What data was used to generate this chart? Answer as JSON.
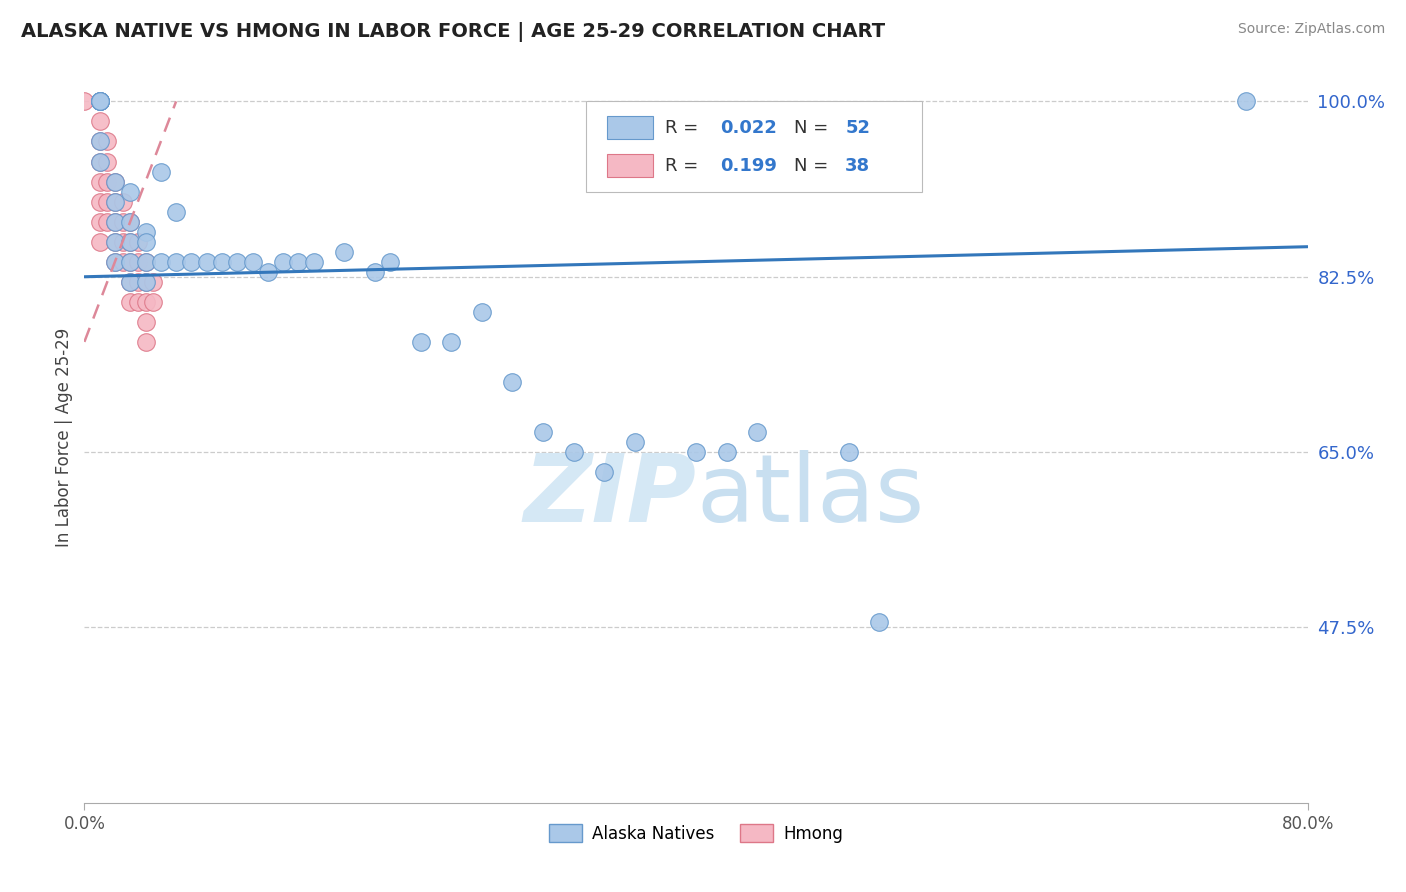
{
  "title": "ALASKA NATIVE VS HMONG IN LABOR FORCE | AGE 25-29 CORRELATION CHART",
  "source": "Source: ZipAtlas.com",
  "ylabel": "In Labor Force | Age 25-29",
  "xlim": [
    0.0,
    0.8
  ],
  "ylim": [
    0.3,
    1.03
  ],
  "x_ticks": [
    0.0,
    0.8
  ],
  "x_tick_labels": [
    "0.0%",
    "80.0%"
  ],
  "y_ticks": [
    0.475,
    0.65,
    0.825,
    1.0
  ],
  "y_tick_labels": [
    "47.5%",
    "65.0%",
    "82.5%",
    "100.0%"
  ],
  "alaska_color": "#aac8e8",
  "alaska_edge_color": "#6699cc",
  "hmong_color": "#f5b8c4",
  "hmong_edge_color": "#dd7788",
  "alaska_line_color": "#3377bb",
  "hmong_line_color": "#dd8899",
  "watermark_color": "#d5e8f5",
  "alaska_x": [
    0.01,
    0.01,
    0.01,
    0.01,
    0.01,
    0.01,
    0.01,
    0.01,
    0.02,
    0.02,
    0.02,
    0.02,
    0.02,
    0.03,
    0.03,
    0.03,
    0.03,
    0.03,
    0.04,
    0.04,
    0.04,
    0.04,
    0.05,
    0.05,
    0.06,
    0.06,
    0.07,
    0.08,
    0.09,
    0.1,
    0.11,
    0.12,
    0.13,
    0.14,
    0.15,
    0.17,
    0.19,
    0.2,
    0.22,
    0.24,
    0.26,
    0.28,
    0.3,
    0.32,
    0.34,
    0.36,
    0.4,
    0.42,
    0.44,
    0.5,
    0.52,
    0.76
  ],
  "alaska_y": [
    1.0,
    1.0,
    1.0,
    1.0,
    1.0,
    1.0,
    0.96,
    0.94,
    0.92,
    0.9,
    0.88,
    0.86,
    0.84,
    0.91,
    0.88,
    0.86,
    0.84,
    0.82,
    0.87,
    0.86,
    0.84,
    0.82,
    0.93,
    0.84,
    0.89,
    0.84,
    0.84,
    0.84,
    0.84,
    0.84,
    0.84,
    0.83,
    0.84,
    0.84,
    0.84,
    0.85,
    0.83,
    0.84,
    0.76,
    0.76,
    0.79,
    0.72,
    0.67,
    0.65,
    0.63,
    0.66,
    0.65,
    0.65,
    0.67,
    0.65,
    0.48,
    1.0
  ],
  "hmong_x": [
    0.0,
    0.01,
    0.01,
    0.01,
    0.01,
    0.01,
    0.01,
    0.01,
    0.015,
    0.015,
    0.015,
    0.015,
    0.015,
    0.02,
    0.02,
    0.02,
    0.02,
    0.02,
    0.025,
    0.025,
    0.025,
    0.025,
    0.03,
    0.03,
    0.03,
    0.03,
    0.03,
    0.035,
    0.035,
    0.035,
    0.035,
    0.04,
    0.04,
    0.04,
    0.04,
    0.04,
    0.045,
    0.045
  ],
  "hmong_y": [
    1.0,
    0.98,
    0.96,
    0.94,
    0.92,
    0.9,
    0.88,
    0.86,
    0.96,
    0.94,
    0.92,
    0.9,
    0.88,
    0.92,
    0.9,
    0.88,
    0.86,
    0.84,
    0.9,
    0.88,
    0.86,
    0.84,
    0.88,
    0.86,
    0.84,
    0.82,
    0.8,
    0.86,
    0.84,
    0.82,
    0.8,
    0.84,
    0.82,
    0.8,
    0.78,
    0.76,
    0.82,
    0.8
  ],
  "alaska_trend_x": [
    0.0,
    0.8
  ],
  "alaska_trend_y": [
    0.825,
    0.855
  ],
  "hmong_trend_x": [
    0.0,
    0.06
  ],
  "hmong_trend_y": [
    0.76,
    1.0
  ]
}
